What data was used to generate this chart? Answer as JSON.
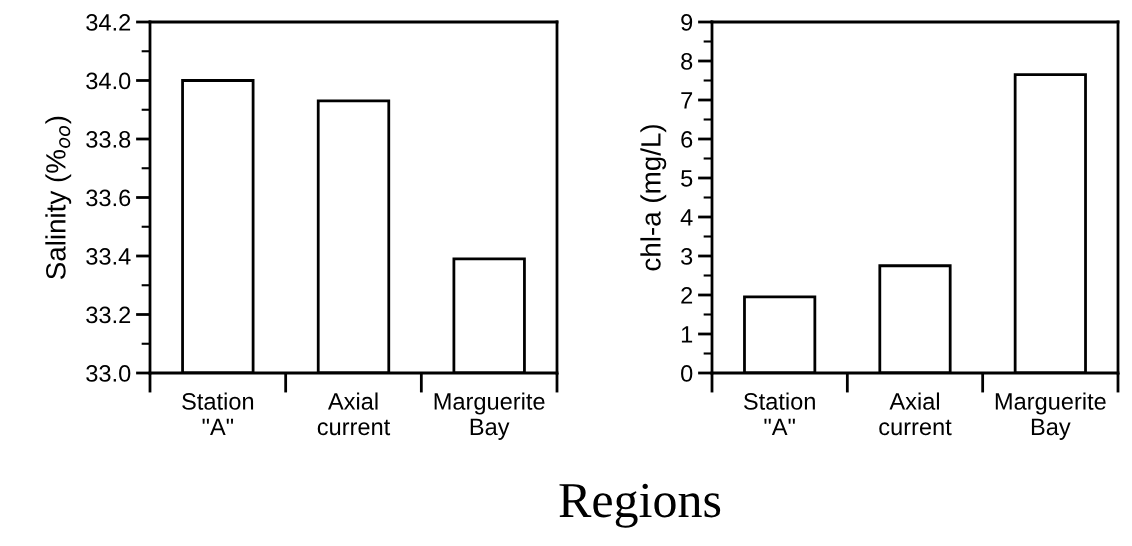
{
  "chart_data": [
    {
      "type": "bar",
      "ylabel": "Salinity (%$_{oo}$)",
      "categories": [
        "Station\n\"A\"",
        "Axial\ncurrent",
        "Marguerite\nBay"
      ],
      "values": [
        34.0,
        33.93,
        33.39
      ],
      "color": "#ffffff",
      "ylim": [
        33.0,
        34.2
      ],
      "yticks": [
        {
          "value": 33.0,
          "label": "33.0"
        },
        {
          "value": 33.2,
          "label": "33.2"
        },
        {
          "value": 33.4,
          "label": "33.4"
        },
        {
          "value": 33.6,
          "label": "33.6"
        },
        {
          "value": 33.8,
          "label": "33.8"
        },
        {
          "value": 34.0,
          "label": "34.0"
        },
        {
          "value": 34.2,
          "label": "34.2"
        }
      ],
      "grid": false
    },
    {
      "type": "bar",
      "ylabel": "chl-a (mg/L)",
      "xlabel": "Regions",
      "categories": [
        "Station\n\"A\"",
        "Axial\ncurrent",
        "Marguerite\nBay"
      ],
      "values": [
        1.95,
        2.75,
        7.65
      ],
      "color": "#ffffff",
      "ylim": [
        0,
        9
      ],
      "yticks": [
        0,
        1,
        2,
        3,
        4,
        5,
        6,
        7,
        8,
        9
      ],
      "grid": false
    }
  ]
}
